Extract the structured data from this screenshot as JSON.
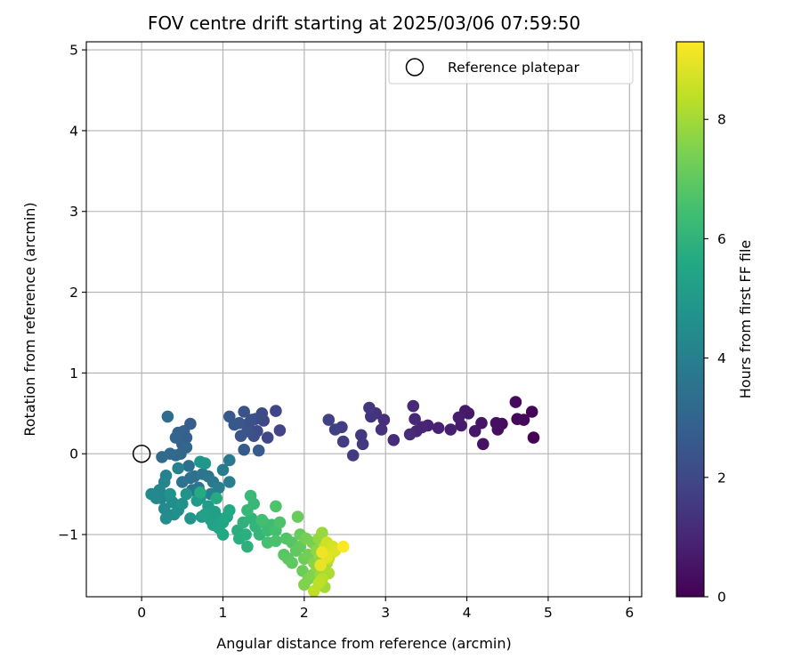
{
  "chart_data": {
    "type": "scatter",
    "title": "FOV centre drift starting at 2025/03/06 07:59:50",
    "xlabel": "Angular distance from reference (arcmin)",
    "ylabel": "Rotation from reference (arcmin)",
    "xlim": [
      -0.68,
      6.15
    ],
    "ylim": [
      -1.77,
      5.1
    ],
    "xticks": [
      0,
      1,
      2,
      3,
      4,
      5,
      6
    ],
    "yticks": [
      -1,
      0,
      1,
      2,
      3,
      4,
      5
    ],
    "grid": true,
    "legend": {
      "position": "top-right",
      "entries": [
        "Reference platepar"
      ]
    },
    "reference_point": {
      "x": 0,
      "y": 0,
      "label": "Reference platepar"
    },
    "colorbar": {
      "label": "Hours from first FF file",
      "range": [
        0,
        9.3
      ],
      "ticks": [
        0,
        2,
        4,
        6,
        8
      ],
      "colormap": "viridis"
    },
    "points": [
      [
        4.82,
        0.2,
        0.05
      ],
      [
        4.8,
        0.52,
        0.1
      ],
      [
        4.7,
        0.42,
        0.15
      ],
      [
        4.62,
        0.43,
        0.2
      ],
      [
        4.6,
        0.64,
        0.25
      ],
      [
        4.43,
        0.37,
        0.3
      ],
      [
        4.38,
        0.3,
        0.35
      ],
      [
        4.36,
        0.38,
        0.4
      ],
      [
        4.2,
        0.12,
        0.45
      ],
      [
        4.18,
        0.38,
        0.5
      ],
      [
        4.1,
        0.28,
        0.55
      ],
      [
        4.02,
        0.5,
        0.6
      ],
      [
        3.98,
        0.53,
        0.65
      ],
      [
        3.93,
        0.35,
        0.7
      ],
      [
        3.9,
        0.45,
        0.75
      ],
      [
        3.8,
        0.3,
        0.8
      ],
      [
        3.65,
        0.32,
        0.85
      ],
      [
        3.52,
        0.35,
        0.9
      ],
      [
        3.45,
        0.33,
        0.95
      ],
      [
        3.38,
        0.28,
        1.0
      ],
      [
        3.36,
        0.43,
        1.05
      ],
      [
        3.34,
        0.59,
        1.1
      ],
      [
        3.3,
        0.24,
        1.15
      ],
      [
        3.1,
        0.17,
        1.2
      ],
      [
        2.98,
        0.42,
        1.25
      ],
      [
        2.95,
        0.3,
        1.3
      ],
      [
        2.88,
        0.5,
        1.35
      ],
      [
        2.82,
        0.46,
        1.4
      ],
      [
        2.8,
        0.57,
        1.45
      ],
      [
        2.72,
        0.12,
        1.5
      ],
      [
        2.7,
        0.23,
        1.55
      ],
      [
        2.6,
        -0.02,
        1.6
      ],
      [
        2.48,
        0.15,
        1.65
      ],
      [
        2.46,
        0.33,
        1.7
      ],
      [
        2.38,
        0.3,
        1.75
      ],
      [
        2.3,
        0.42,
        1.8
      ],
      [
        1.7,
        0.29,
        1.85
      ],
      [
        1.65,
        0.53,
        1.9
      ],
      [
        1.55,
        0.2,
        1.95
      ],
      [
        1.5,
        0.41,
        2.0
      ],
      [
        1.48,
        0.5,
        2.05
      ],
      [
        1.42,
        0.28,
        2.1
      ],
      [
        1.4,
        0.43,
        2.15
      ],
      [
        1.38,
        0.22,
        2.2
      ],
      [
        1.35,
        0.42,
        2.25
      ],
      [
        1.32,
        0.38,
        2.3
      ],
      [
        1.3,
        0.28,
        2.35
      ],
      [
        1.26,
        0.52,
        2.4
      ],
      [
        1.22,
        0.22,
        2.45
      ],
      [
        1.2,
        0.38,
        2.5
      ],
      [
        1.14,
        0.36,
        2.55
      ],
      [
        1.08,
        0.46,
        2.6
      ],
      [
        1.44,
        0.04,
        2.65
      ],
      [
        1.26,
        0.05,
        2.7
      ],
      [
        0.6,
        0.37,
        2.75
      ],
      [
        0.55,
        0.2,
        2.8
      ],
      [
        0.52,
        0.28,
        2.85
      ],
      [
        0.5,
        0.12,
        2.9
      ],
      [
        0.45,
        0.26,
        2.95
      ],
      [
        0.42,
        0.2,
        3.0
      ],
      [
        0.55,
        0.08,
        3.05
      ],
      [
        0.48,
        0.0,
        3.1
      ],
      [
        0.42,
        -0.02,
        3.15
      ],
      [
        0.35,
        0.0,
        3.2
      ],
      [
        0.25,
        -0.04,
        3.25
      ],
      [
        0.32,
        0.46,
        3.3
      ],
      [
        0.58,
        -0.15,
        3.35
      ],
      [
        0.6,
        -0.3,
        3.4
      ],
      [
        0.65,
        -0.28,
        3.45
      ],
      [
        0.5,
        -0.35,
        3.5
      ],
      [
        0.62,
        -0.45,
        3.55
      ],
      [
        0.7,
        -0.42,
        3.6
      ],
      [
        0.75,
        -0.25,
        3.65
      ],
      [
        0.82,
        -0.28,
        3.7
      ],
      [
        0.88,
        -0.35,
        3.75
      ],
      [
        1.08,
        -0.08,
        3.8
      ],
      [
        1.0,
        -0.2,
        3.85
      ],
      [
        1.08,
        -0.35,
        3.9
      ],
      [
        0.95,
        -0.42,
        3.95
      ],
      [
        0.85,
        -0.5,
        4.0
      ],
      [
        0.45,
        -0.18,
        4.05
      ],
      [
        0.3,
        -0.27,
        4.1
      ],
      [
        0.28,
        -0.35,
        4.15
      ],
      [
        0.24,
        -0.55,
        4.2
      ],
      [
        0.22,
        -0.45,
        4.25
      ],
      [
        0.18,
        -0.55,
        4.3
      ],
      [
        0.12,
        -0.5,
        4.35
      ],
      [
        0.28,
        -0.68,
        4.4
      ],
      [
        0.3,
        -0.8,
        4.45
      ],
      [
        0.38,
        -0.6,
        4.5
      ],
      [
        0.4,
        -0.75,
        4.55
      ],
      [
        0.45,
        -0.7,
        4.6
      ],
      [
        0.5,
        -0.62,
        4.65
      ],
      [
        0.35,
        -0.5,
        4.7
      ],
      [
        0.55,
        -0.5,
        4.75
      ],
      [
        0.6,
        -0.8,
        4.8
      ],
      [
        0.72,
        -0.1,
        4.85
      ],
      [
        0.78,
        -0.12,
        4.9
      ],
      [
        0.72,
        -0.55,
        4.95
      ],
      [
        0.74,
        -0.78,
        5.0
      ],
      [
        0.68,
        -0.58,
        5.05
      ],
      [
        0.82,
        -0.65,
        5.1
      ],
      [
        0.85,
        -0.82,
        5.15
      ],
      [
        0.9,
        -0.72,
        5.2
      ],
      [
        0.95,
        -0.8,
        5.25
      ],
      [
        0.78,
        -0.75,
        5.3
      ],
      [
        0.88,
        -0.88,
        5.35
      ],
      [
        0.95,
        -0.92,
        5.4
      ],
      [
        1.0,
        -0.85,
        5.45
      ],
      [
        1.05,
        -0.78,
        5.5
      ],
      [
        1.0,
        -1.0,
        5.55
      ],
      [
        1.08,
        -0.7,
        5.6
      ],
      [
        0.92,
        -0.55,
        5.65
      ],
      [
        0.72,
        -0.48,
        5.7
      ],
      [
        1.18,
        -0.95,
        5.75
      ],
      [
        1.2,
        -1.05,
        5.8
      ],
      [
        1.28,
        -1.0,
        5.85
      ],
      [
        1.3,
        -1.15,
        5.9
      ],
      [
        1.25,
        -0.85,
        5.95
      ],
      [
        1.35,
        -0.8,
        6.0
      ],
      [
        1.4,
        -0.9,
        6.05
      ],
      [
        1.45,
        -1.0,
        6.1
      ],
      [
        1.3,
        -0.7,
        6.15
      ],
      [
        1.38,
        -0.62,
        6.2
      ],
      [
        1.34,
        -0.52,
        6.25
      ],
      [
        1.5,
        -0.85,
        6.3
      ],
      [
        1.55,
        -0.95,
        6.35
      ],
      [
        1.6,
        -0.88,
        6.4
      ],
      [
        1.48,
        -0.82,
        6.45
      ],
      [
        1.65,
        -0.95,
        6.5
      ],
      [
        1.55,
        -1.1,
        6.55
      ],
      [
        1.65,
        -1.08,
        6.6
      ],
      [
        1.7,
        -0.85,
        6.65
      ],
      [
        1.65,
        -0.65,
        6.7
      ],
      [
        1.78,
        -1.05,
        6.75
      ],
      [
        1.85,
        -1.1,
        6.8
      ],
      [
        1.75,
        -1.25,
        6.85
      ],
      [
        1.8,
        -1.3,
        6.9
      ],
      [
        1.85,
        -1.35,
        6.95
      ],
      [
        1.9,
        -1.2,
        7.0
      ],
      [
        1.95,
        -1.15,
        7.05
      ],
      [
        1.95,
        -1.0,
        7.1
      ],
      [
        1.92,
        -0.78,
        7.15
      ],
      [
        1.98,
        -1.45,
        7.2
      ],
      [
        2.0,
        -1.3,
        7.25
      ],
      [
        2.05,
        -1.25,
        7.3
      ],
      [
        2.02,
        -1.05,
        7.35
      ],
      [
        2.1,
        -1.1,
        7.4
      ],
      [
        2.05,
        -1.55,
        7.45
      ],
      [
        2.0,
        -1.62,
        7.5
      ],
      [
        2.1,
        -1.5,
        7.55
      ],
      [
        2.12,
        -1.35,
        7.6
      ],
      [
        2.15,
        -1.4,
        7.65
      ],
      [
        2.15,
        -1.2,
        7.7
      ],
      [
        2.2,
        -1.3,
        7.75
      ],
      [
        2.18,
        -1.05,
        7.8
      ],
      [
        2.22,
        -0.98,
        7.85
      ],
      [
        2.2,
        -1.5,
        7.9
      ],
      [
        2.25,
        -1.4,
        7.95
      ],
      [
        2.25,
        -1.65,
        8.0
      ],
      [
        2.28,
        -1.35,
        8.05
      ],
      [
        2.3,
        -1.25,
        8.1
      ],
      [
        2.3,
        -1.48,
        8.15
      ],
      [
        2.25,
        -1.15,
        8.2
      ],
      [
        2.32,
        -1.2,
        8.25
      ],
      [
        2.22,
        -1.55,
        8.3
      ],
      [
        2.18,
        -1.6,
        8.35
      ],
      [
        2.12,
        -1.7,
        8.4
      ],
      [
        2.3,
        -1.3,
        8.45
      ],
      [
        2.35,
        -1.22,
        8.5
      ],
      [
        2.25,
        -1.18,
        8.55
      ],
      [
        2.28,
        -1.1,
        8.6
      ],
      [
        2.35,
        -1.15,
        8.7
      ],
      [
        2.38,
        -1.2,
        8.8
      ],
      [
        2.28,
        -1.28,
        8.9
      ],
      [
        2.2,
        -1.38,
        9.0
      ],
      [
        2.22,
        -1.22,
        9.1
      ],
      [
        2.48,
        -1.15,
        9.25
      ]
    ]
  }
}
